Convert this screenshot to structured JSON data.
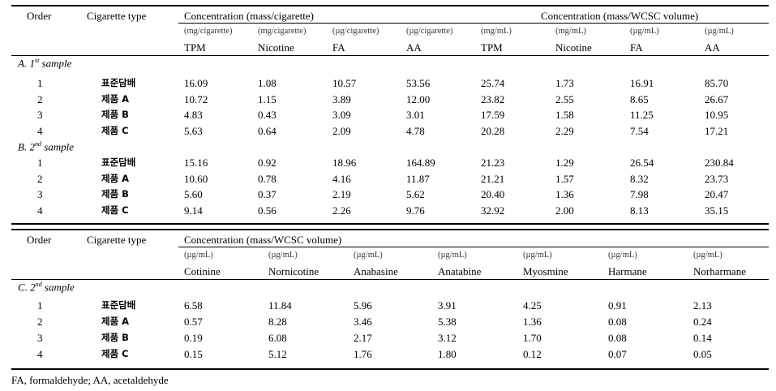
{
  "table1": {
    "header_order": "Order",
    "header_type": "Cigarette type",
    "group_per_cigarette": "Concentration (mass/cigarette)",
    "group_per_volume": "Concentration (mass/WCSC volume)",
    "units": [
      "(mg/cigarette)",
      "(mg/cigarette)",
      "(µg/cigarette)",
      "(µg/cigarette)",
      "(mg/mL)",
      "(mg/mL)",
      "(µg/mL)",
      "(µg/mL)"
    ],
    "variables": [
      "TPM",
      "Nicotine",
      "FA",
      "AA",
      "TPM",
      "Nicotine",
      "FA",
      "AA"
    ],
    "sections": [
      {
        "label_pre": "A. 1",
        "label_sup": "st",
        "label_post": " sample",
        "rows": [
          {
            "order": "1",
            "type": "표준담배",
            "values": [
              "16.09",
              "1.08",
              "10.57",
              "53.56",
              "25.74",
              "1.73",
              "16.91",
              "85.70"
            ]
          },
          {
            "order": "2",
            "type": "제품  A",
            "values": [
              "10.72",
              "1.15",
              "3.89",
              "12.00",
              "23.82",
              "2.55",
              "8.65",
              "26.67"
            ]
          },
          {
            "order": "3",
            "type": "제품  B",
            "values": [
              "4.83",
              "0.43",
              "3.09",
              "3.01",
              "17.59",
              "1.58",
              "11.25",
              "10.95"
            ]
          },
          {
            "order": "4",
            "type": "제품  C",
            "values": [
              "5.63",
              "0.64",
              "2.09",
              "4.78",
              "20.28",
              "2.29",
              "7.54",
              "17.21"
            ]
          }
        ]
      },
      {
        "label_pre": "B. 2",
        "label_sup": "nd",
        "label_post": " sample",
        "rows": [
          {
            "order": "1",
            "type": "표준담배",
            "values": [
              "15.16",
              "0.92",
              "18.96",
              "164.89",
              "21.23",
              "1.29",
              "26.54",
              "230.84"
            ]
          },
          {
            "order": "2",
            "type": "제품  A",
            "values": [
              "10.60",
              "0.78",
              "4.16",
              "11.87",
              "21.21",
              "1.57",
              "8.32",
              "23.73"
            ]
          },
          {
            "order": "3",
            "type": "제품  B",
            "values": [
              "5.60",
              "0.37",
              "2.19",
              "5.62",
              "20.40",
              "1.36",
              "7.98",
              "20.47"
            ]
          },
          {
            "order": "4",
            "type": "제품  C",
            "values": [
              "9.14",
              "0.56",
              "2.26",
              "9.76",
              "32.92",
              "2.00",
              "8.13",
              "35.15"
            ]
          }
        ]
      }
    ]
  },
  "table2": {
    "header_order": "Order",
    "header_type": "Cigarette type",
    "group_per_volume": "Concentration (mass/WCSC volume)",
    "units": [
      "(µg/mL)",
      "(µg/mL)",
      "(µg/mL)",
      "(µg/mL)",
      "(µg/mL)",
      "(µg/mL)",
      "(µg/mL)"
    ],
    "variables": [
      "Cotinine",
      "Nornicotine",
      "Anabasine",
      "Anatabine",
      "Myosmine",
      "Harmane",
      "Norharmane"
    ],
    "section": {
      "label_pre": "C. 2",
      "label_sup": "nd",
      "label_post": " sample",
      "rows": [
        {
          "order": "1",
          "type": "표준담배",
          "values": [
            "6.58",
            "11.84",
            "5.96",
            "3.91",
            "4.25",
            "0.91",
            "2.13"
          ]
        },
        {
          "order": "2",
          "type": "제품  A",
          "values": [
            "0.57",
            "8.28",
            "3.46",
            "5.38",
            "1.36",
            "0.08",
            "0.24"
          ]
        },
        {
          "order": "3",
          "type": "제품  B",
          "values": [
            "0.19",
            "6.08",
            "2.17",
            "3.12",
            "1.70",
            "0.08",
            "0.14"
          ]
        },
        {
          "order": "4",
          "type": "제품  C",
          "values": [
            "0.15",
            "5.12",
            "1.76",
            "1.80",
            "0.12",
            "0.07",
            "0.05"
          ]
        }
      ]
    }
  },
  "footnote": "FA, formaldehyde; AA, acetaldehyde"
}
